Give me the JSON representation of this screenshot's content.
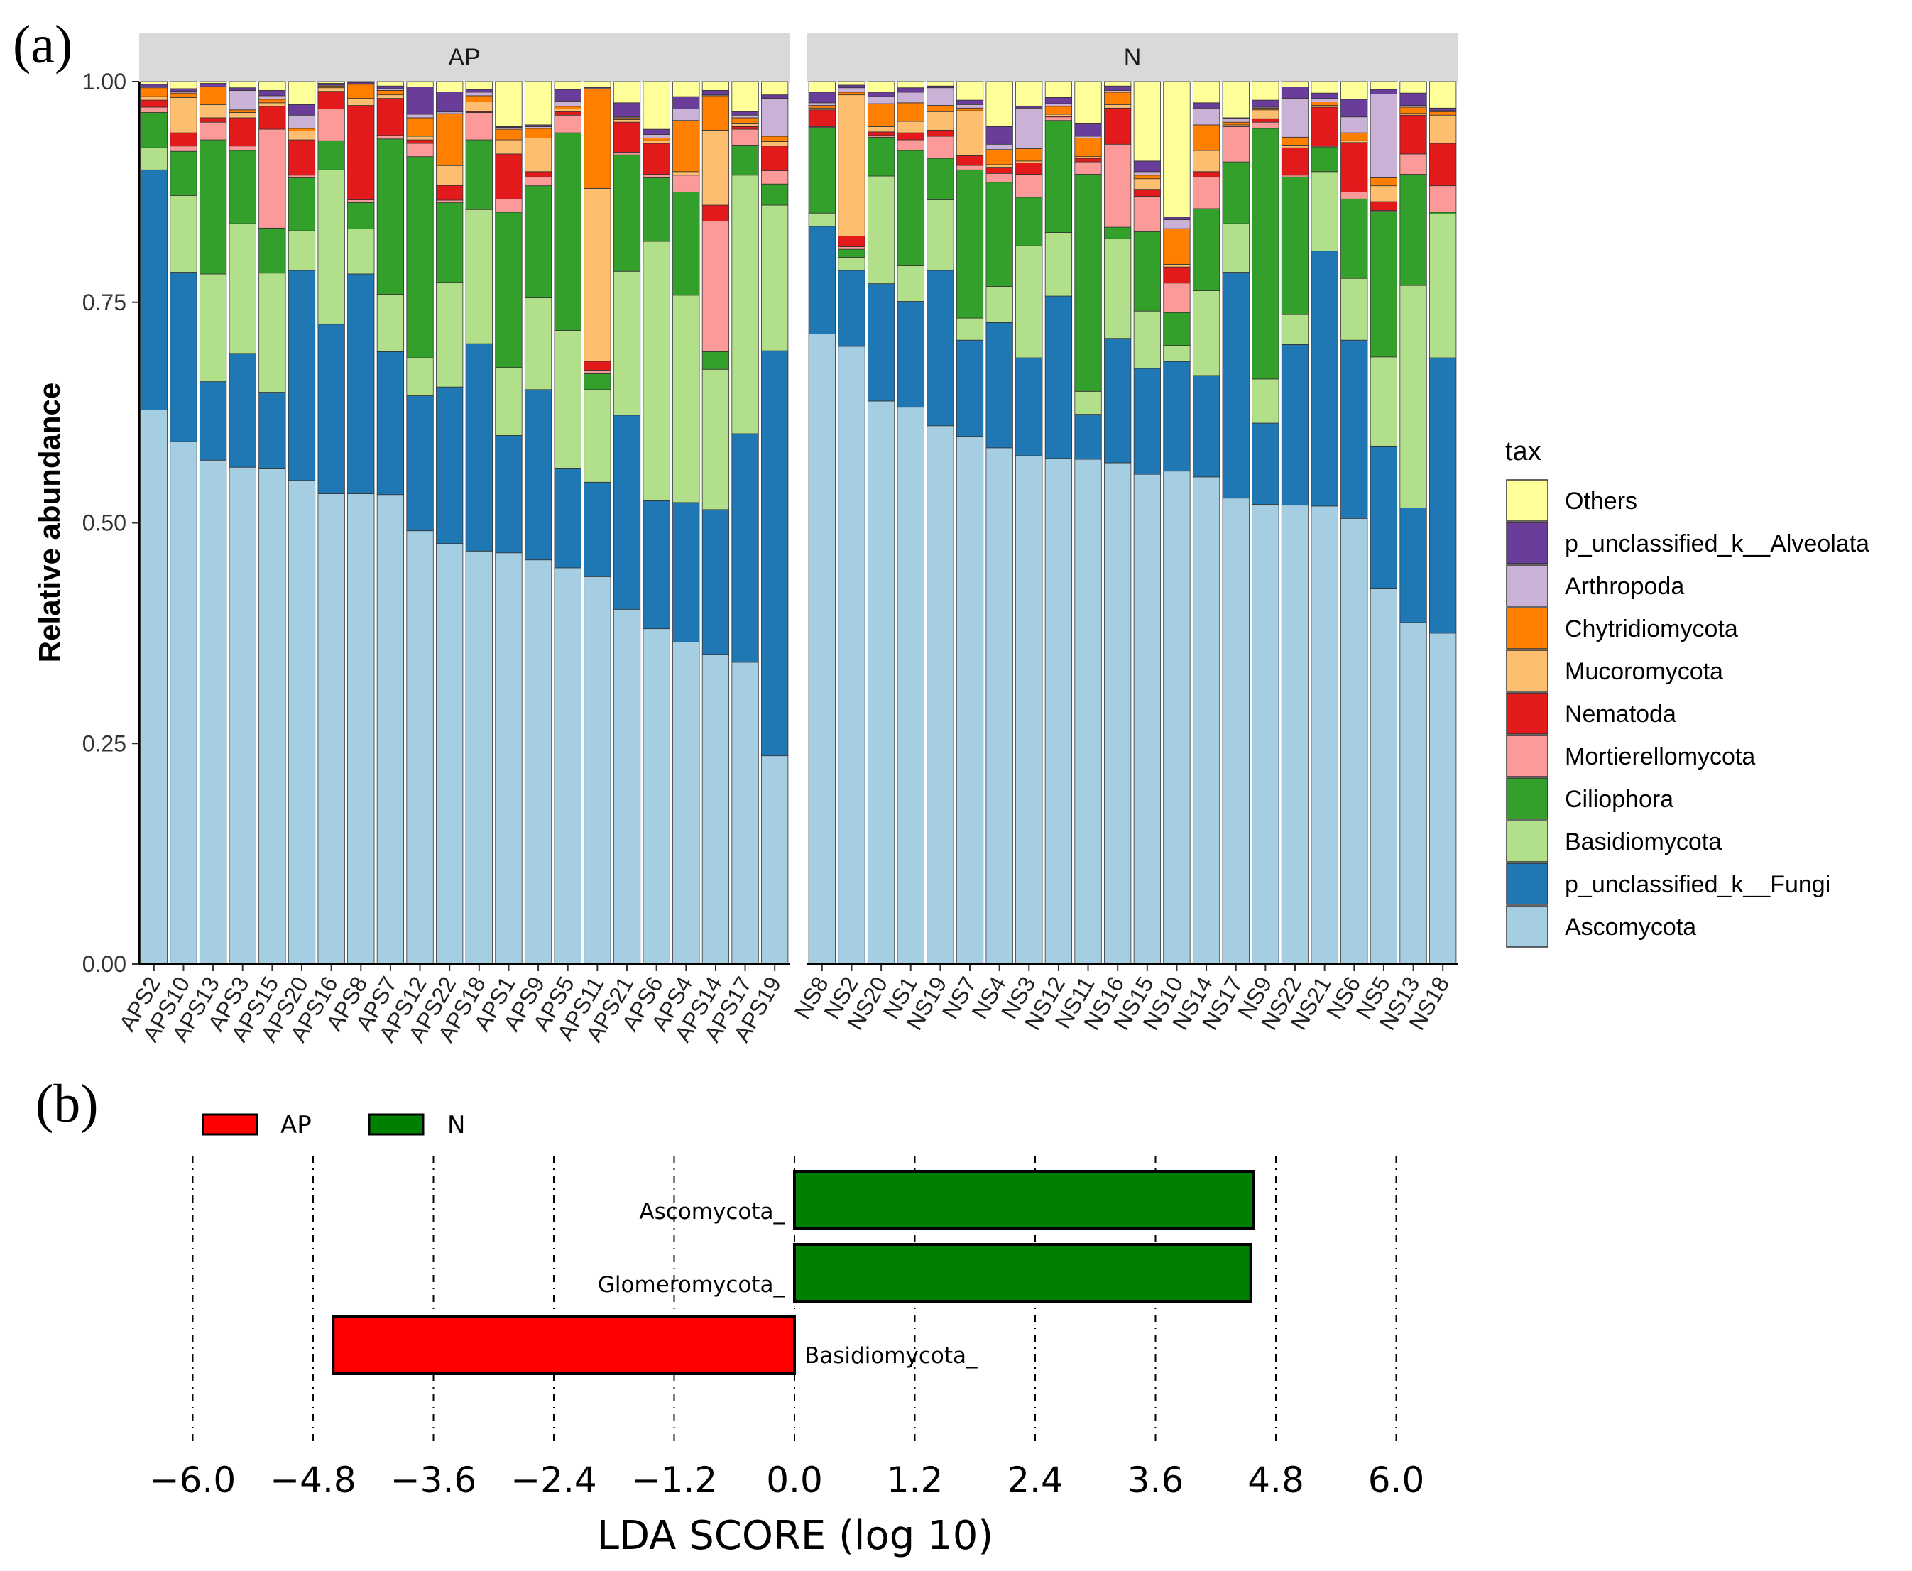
{
  "chart_data": [
    {
      "type": "stacked-bar",
      "panel_label": "(a)",
      "ylabel": "Relative abundance",
      "ylim": [
        0,
        1
      ],
      "yticks": [
        "0.00",
        "0.25",
        "0.50",
        "0.75",
        "1.00"
      ],
      "ytick_values": [
        0,
        0.25,
        0.5,
        0.75,
        1.0
      ],
      "legend_title": "tax",
      "taxa": [
        {
          "name": "Others",
          "color": "#FFFF99"
        },
        {
          "name": "p_unclassified_k__Alveolata",
          "color": "#6A3D9A"
        },
        {
          "name": "Arthropoda",
          "color": "#CAB2D6"
        },
        {
          "name": "Chytridiomycota",
          "color": "#FF7F00"
        },
        {
          "name": "Mucoromycota",
          "color": "#FDBF6F"
        },
        {
          "name": "Nematoda",
          "color": "#E31A1C"
        },
        {
          "name": "Mortierellomycota",
          "color": "#FB9A99"
        },
        {
          "name": "Ciliophora",
          "color": "#33A02C"
        },
        {
          "name": "Basidiomycota",
          "color": "#B2DF8A"
        },
        {
          "name": "p_unclassified_k__Fungi",
          "color": "#1F78B4"
        },
        {
          "name": "Ascomycota",
          "color": "#A6CEE3"
        }
      ],
      "stack_order_bottom_up": [
        "Ascomycota",
        "p_unclassified_k__Fungi",
        "Basidiomycota",
        "Ciliophora",
        "Mortierellomycota",
        "Nematoda",
        "Mucoromycota",
        "Chytridiomycota",
        "Arthropoda",
        "p_unclassified_k__Alveolata",
        "Others"
      ],
      "facets": [
        {
          "title": "AP",
          "samples": [
            {
              "name": "APS2",
              "values": [
                0.628,
                0.272,
                0.025,
                0.04,
                0.006,
                0.008,
                0.004,
                0.01,
                0.001,
                0.003,
                0.003
              ]
            },
            {
              "name": "APS10",
              "values": [
                0.592,
                0.192,
                0.087,
                0.05,
                0.006,
                0.015,
                0.04,
                0.005,
                0.002,
                0.003,
                0.008
              ]
            },
            {
              "name": "APS13",
              "values": [
                0.571,
                0.089,
                0.122,
                0.152,
                0.02,
                0.005,
                0.015,
                0.02,
                0.0,
                0.004,
                0.002
              ]
            },
            {
              "name": "APS3",
              "values": [
                0.563,
                0.129,
                0.147,
                0.083,
                0.005,
                0.032,
                0.006,
                0.003,
                0.022,
                0.003,
                0.007
              ]
            },
            {
              "name": "APS15",
              "values": [
                0.562,
                0.086,
                0.135,
                0.051,
                0.112,
                0.026,
                0.004,
                0.004,
                0.004,
                0.006,
                0.01
              ]
            },
            {
              "name": "APS20",
              "values": [
                0.548,
                0.238,
                0.045,
                0.06,
                0.003,
                0.04,
                0.01,
                0.003,
                0.015,
                0.012,
                0.026
              ]
            },
            {
              "name": "APS16",
              "values": [
                0.533,
                0.192,
                0.175,
                0.033,
                0.036,
                0.02,
                0.004,
                0.002,
                0.001,
                0.002,
                0.002
              ]
            },
            {
              "name": "APS8",
              "values": [
                0.533,
                0.249,
                0.051,
                0.03,
                0.003,
                0.107,
                0.008,
                0.016,
                0.0,
                0.002,
                0.001
              ]
            },
            {
              "name": "APS7",
              "values": [
                0.532,
                0.162,
                0.065,
                0.176,
                0.004,
                0.042,
                0.004,
                0.005,
                0.002,
                0.003,
                0.005
              ]
            },
            {
              "name": "APS12",
              "values": [
                0.491,
                0.153,
                0.043,
                0.228,
                0.015,
                0.004,
                0.004,
                0.021,
                0.004,
                0.031,
                0.006
              ]
            },
            {
              "name": "APS22",
              "values": [
                0.486,
                0.181,
                0.121,
                0.092,
                0.003,
                0.017,
                0.023,
                0.06,
                0.002,
                0.023,
                0.012
              ]
            },
            {
              "name": "APS18",
              "values": [
                0.468,
                0.235,
                0.152,
                0.079,
                0.031,
                0.001,
                0.011,
                0.007,
                0.004,
                0.003,
                0.009
              ]
            },
            {
              "name": "APS1",
              "values": [
                0.466,
                0.133,
                0.077,
                0.176,
                0.015,
                0.051,
                0.016,
                0.012,
                0.002,
                0.001,
                0.051
              ]
            },
            {
              "name": "APS9",
              "values": [
                0.458,
                0.193,
                0.104,
                0.127,
                0.01,
                0.006,
                0.038,
                0.011,
                0.002,
                0.002,
                0.049
              ]
            },
            {
              "name": "APS5",
              "values": [
                0.449,
                0.113,
                0.156,
                0.224,
                0.02,
                0.004,
                0.003,
                0.003,
                0.006,
                0.013,
                0.009
              ]
            },
            {
              "name": "APS11",
              "values": [
                0.439,
                0.107,
                0.105,
                0.018,
                0.004,
                0.01,
                0.196,
                0.113,
                0.001,
                0.001,
                0.006
              ]
            },
            {
              "name": "APS21",
              "values": [
                0.402,
                0.22,
                0.163,
                0.132,
                0.003,
                0.034,
                0.003,
                0.002,
                0.001,
                0.016,
                0.024
              ]
            },
            {
              "name": "APS6",
              "values": [
                0.38,
                0.145,
                0.294,
                0.072,
                0.004,
                0.035,
                0.003,
                0.003,
                0.004,
                0.006,
                0.054
              ]
            },
            {
              "name": "APS4",
              "values": [
                0.365,
                0.158,
                0.235,
                0.117,
                0.019,
                0.0,
                0.004,
                0.058,
                0.013,
                0.014,
                0.017
              ]
            },
            {
              "name": "APS14",
              "values": [
                0.351,
                0.164,
                0.159,
                0.02,
                0.148,
                0.018,
                0.085,
                0.039,
                0.001,
                0.005,
                0.01
              ]
            },
            {
              "name": "APS17",
              "values": [
                0.342,
                0.259,
                0.293,
                0.034,
                0.018,
                0.003,
                0.004,
                0.006,
                0.003,
                0.004,
                0.034
              ]
            },
            {
              "name": "APS19",
              "values": [
                0.236,
                0.459,
                0.165,
                0.024,
                0.015,
                0.028,
                0.005,
                0.006,
                0.043,
                0.004,
                0.015
              ]
            }
          ]
        },
        {
          "title": "N",
          "samples": [
            {
              "name": "NS8",
              "values": [
                0.714,
                0.122,
                0.015,
                0.097,
                0.001,
                0.019,
                0.002,
                0.003,
                0.003,
                0.012,
                0.012
              ]
            },
            {
              "name": "NS2",
              "values": [
                0.7,
                0.086,
                0.015,
                0.009,
                0.003,
                0.012,
                0.16,
                0.003,
                0.005,
                0.003,
                0.004
              ]
            },
            {
              "name": "NS20",
              "values": [
                0.638,
                0.133,
                0.122,
                0.044,
                0.002,
                0.004,
                0.006,
                0.026,
                0.008,
                0.005,
                0.012
              ]
            },
            {
              "name": "NS1",
              "values": [
                0.631,
                0.12,
                0.041,
                0.13,
                0.012,
                0.008,
                0.013,
                0.021,
                0.012,
                0.005,
                0.007
              ]
            },
            {
              "name": "NS19",
              "values": [
                0.61,
                0.176,
                0.08,
                0.047,
                0.025,
                0.007,
                0.021,
                0.007,
                0.02,
                0.002,
                0.005
              ]
            },
            {
              "name": "NS7",
              "values": [
                0.598,
                0.109,
                0.025,
                0.168,
                0.005,
                0.011,
                0.051,
                0.003,
                0.004,
                0.005,
                0.021
              ]
            },
            {
              "name": "NS4",
              "values": [
                0.585,
                0.142,
                0.041,
                0.118,
                0.01,
                0.007,
                0.003,
                0.017,
                0.006,
                0.02,
                0.051
              ]
            },
            {
              "name": "NS3",
              "values": [
                0.576,
                0.111,
                0.127,
                0.055,
                0.026,
                0.013,
                0.002,
                0.014,
                0.046,
                0.002,
                0.028
              ]
            },
            {
              "name": "NS12",
              "values": [
                0.573,
                0.184,
                0.072,
                0.127,
                0.004,
                0.001,
                0.002,
                0.009,
                0.003,
                0.007,
                0.018
              ]
            },
            {
              "name": "NS11",
              "values": [
                0.572,
                0.051,
                0.026,
                0.246,
                0.014,
                0.004,
                0.002,
                0.021,
                0.002,
                0.015,
                0.047
              ]
            },
            {
              "name": "NS16",
              "values": [
                0.568,
                0.141,
                0.113,
                0.013,
                0.094,
                0.041,
                0.004,
                0.014,
                0.002,
                0.005,
                0.005
              ]
            },
            {
              "name": "NS15",
              "values": [
                0.555,
                0.12,
                0.065,
                0.09,
                0.04,
                0.008,
                0.012,
                0.004,
                0.004,
                0.012,
                0.09
              ]
            },
            {
              "name": "NS10",
              "values": [
                0.553,
                0.123,
                0.018,
                0.037,
                0.033,
                0.018,
                0.003,
                0.04,
                0.01,
                0.003,
                0.152
              ]
            },
            {
              "name": "NS14",
              "values": [
                0.552,
                0.115,
                0.096,
                0.093,
                0.036,
                0.006,
                0.024,
                0.029,
                0.019,
                0.006,
                0.024
              ]
            },
            {
              "name": "NS17",
              "values": [
                0.528,
                0.256,
                0.055,
                0.07,
                0.04,
                0.0,
                0.002,
                0.003,
                0.004,
                0.001,
                0.041
              ]
            },
            {
              "name": "NS9",
              "values": [
                0.521,
                0.092,
                0.05,
                0.284,
                0.007,
                0.004,
                0.01,
                0.002,
                0.001,
                0.008,
                0.021
              ]
            },
            {
              "name": "NS22",
              "values": [
                0.52,
                0.182,
                0.034,
                0.156,
                0.002,
                0.031,
                0.003,
                0.009,
                0.044,
                0.013,
                0.006
              ]
            },
            {
              "name": "NS21",
              "values": [
                0.519,
                0.289,
                0.09,
                0.028,
                0.001,
                0.044,
                0.002,
                0.004,
                0.004,
                0.006,
                0.013
              ]
            },
            {
              "name": "NS6",
              "values": [
                0.505,
                0.202,
                0.07,
                0.09,
                0.008,
                0.056,
                0.002,
                0.009,
                0.018,
                0.02,
                0.02
              ]
            },
            {
              "name": "NS5",
              "values": [
                0.426,
                0.161,
                0.101,
                0.165,
                0.001,
                0.01,
                0.018,
                0.009,
                0.095,
                0.005,
                0.009
              ]
            },
            {
              "name": "NS13",
              "values": [
                0.387,
                0.13,
                0.252,
                0.126,
                0.023,
                0.044,
                0.002,
                0.007,
                0.002,
                0.014,
                0.013
              ]
            },
            {
              "name": "NS18",
              "values": [
                0.375,
                0.312,
                0.163,
                0.002,
                0.03,
                0.048,
                0.032,
                0.004,
                0.001,
                0.003,
                0.03
              ]
            }
          ]
        }
      ]
    },
    {
      "type": "bar",
      "orientation": "horizontal",
      "panel_label": "(b)",
      "xlabel": "LDA SCORE (log 10)",
      "xlim": [
        -6.6,
        6.6
      ],
      "xticks": [
        -6.0,
        -4.8,
        -3.6,
        -2.4,
        -1.2,
        0.0,
        1.2,
        2.4,
        3.6,
        4.8,
        6.0
      ],
      "xtick_labels": [
        "−6.0",
        "−4.8",
        "−3.6",
        "−2.4",
        "−1.2",
        "0.0",
        "1.2",
        "2.4",
        "3.6",
        "4.8",
        "6.0"
      ],
      "legend": [
        {
          "name": "AP",
          "color": "#FF0000"
        },
        {
          "name": "N",
          "color": "#008000"
        }
      ],
      "bars": [
        {
          "name": "Ascomycota_",
          "value": 4.58,
          "group": "N"
        },
        {
          "name": "Glomeromycota_",
          "value": 4.55,
          "group": "N"
        },
        {
          "name": "Basidiomycota_",
          "value": -4.6,
          "group": "AP"
        }
      ]
    }
  ]
}
